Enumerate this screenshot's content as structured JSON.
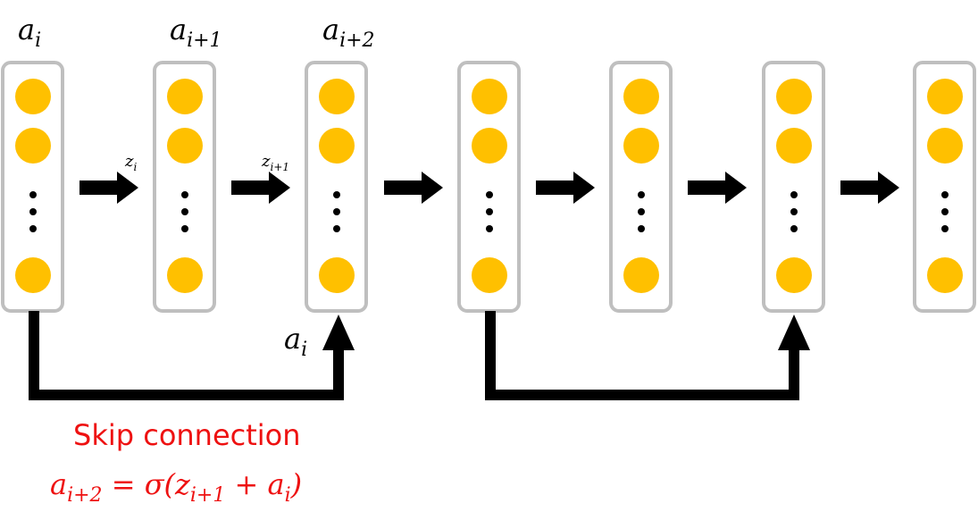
{
  "labels": {
    "col0": {
      "base": "a",
      "sub": "i"
    },
    "col1": {
      "base": "a",
      "sub": "i+1"
    },
    "col2": {
      "base": "a",
      "sub": "i+2"
    },
    "z0": {
      "base": "z",
      "sub": "i"
    },
    "z1": {
      "base": "z",
      "sub": "i+1"
    },
    "skip_input": {
      "base": "a",
      "sub": "i"
    }
  },
  "caption": {
    "title": "Skip connection",
    "eq_lhs_base": "a",
    "eq_lhs_sub": "i+2",
    "eq_mid": " = σ(",
    "eq_z_base": "z",
    "eq_z_sub": "i+1",
    "eq_plus": " + ",
    "eq_a_base": "a",
    "eq_a_sub": "i",
    "eq_close": ")"
  },
  "layer_count": 7,
  "colors": {
    "node": "#ffc000",
    "box_border": "#bfbfbf",
    "arrow": "#000000",
    "caption": "#ee1111"
  }
}
